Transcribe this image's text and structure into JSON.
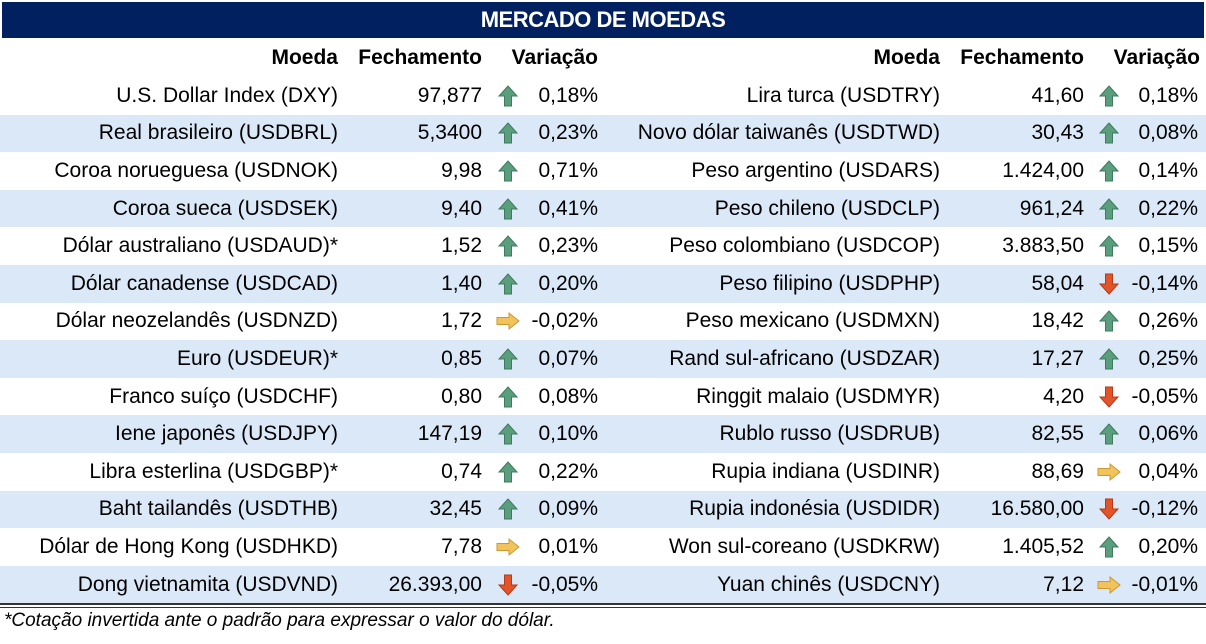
{
  "title": "MERCADO DE MOEDAS",
  "headers": {
    "currency": "Moeda",
    "close": "Fechamento",
    "change": "Variação"
  },
  "colors": {
    "title_bg": "#002060",
    "band": "#dbe8f7",
    "up": "#5a9e7e",
    "flat": "#f2c35a",
    "down": "#e2542a"
  },
  "left": [
    {
      "name": "U.S. Dollar Index (DXY)",
      "close": "97,877",
      "dir": "up",
      "change": "0,18%"
    },
    {
      "name": "Real brasileiro (USDBRL)",
      "close": "5,3400",
      "dir": "up",
      "change": "0,23%"
    },
    {
      "name": "Coroa norueguesa (USDNOK)",
      "close": "9,98",
      "dir": "up",
      "change": "0,71%"
    },
    {
      "name": "Coroa sueca (USDSEK)",
      "close": "9,40",
      "dir": "up",
      "change": "0,41%"
    },
    {
      "name": "Dólar australiano (USDAUD)*",
      "close": "1,52",
      "dir": "up",
      "change": "0,23%"
    },
    {
      "name": "Dólar canadense (USDCAD)",
      "close": "1,40",
      "dir": "up",
      "change": "0,20%"
    },
    {
      "name": "Dólar neozelandês (USDNZD)",
      "close": "1,72",
      "dir": "flat",
      "change": "-0,02%"
    },
    {
      "name": "Euro (USDEUR)*",
      "close": "0,85",
      "dir": "up",
      "change": "0,07%"
    },
    {
      "name": "Franco suíço (USDCHF)",
      "close": "0,80",
      "dir": "up",
      "change": "0,08%"
    },
    {
      "name": "Iene japonês (USDJPY)",
      "close": "147,19",
      "dir": "up",
      "change": "0,10%"
    },
    {
      "name": "Libra esterlina (USDGBP)*",
      "close": "0,74",
      "dir": "up",
      "change": "0,22%"
    },
    {
      "name": "Baht tailandês (USDTHB)",
      "close": "32,45",
      "dir": "up",
      "change": "0,09%"
    },
    {
      "name": "Dólar de Hong Kong (USDHKD)",
      "close": "7,78",
      "dir": "flat",
      "change": "0,01%"
    },
    {
      "name": "Dong vietnamita (USDVND)",
      "close": "26.393,00",
      "dir": "down",
      "change": "-0,05%"
    }
  ],
  "right": [
    {
      "name": "Lira turca (USDTRY)",
      "close": "41,60",
      "dir": "up",
      "change": "0,18%"
    },
    {
      "name": "Novo dólar taiwanês (USDTWD)",
      "close": "30,43",
      "dir": "up",
      "change": "0,08%"
    },
    {
      "name": "Peso argentino (USDARS)",
      "close": "1.424,00",
      "dir": "up",
      "change": "0,14%"
    },
    {
      "name": "Peso chileno (USDCLP)",
      "close": "961,24",
      "dir": "up",
      "change": "0,22%"
    },
    {
      "name": "Peso colombiano (USDCOP)",
      "close": "3.883,50",
      "dir": "up",
      "change": "0,15%"
    },
    {
      "name": "Peso filipino (USDPHP)",
      "close": "58,04",
      "dir": "down",
      "change": "-0,14%"
    },
    {
      "name": "Peso mexicano (USDMXN)",
      "close": "18,42",
      "dir": "up",
      "change": "0,26%"
    },
    {
      "name": "Rand sul-africano (USDZAR)",
      "close": "17,27",
      "dir": "up",
      "change": "0,25%"
    },
    {
      "name": "Ringgit malaio (USDMYR)",
      "close": "4,20",
      "dir": "down",
      "change": "-0,05%"
    },
    {
      "name": "Rublo russo (USDRUB)",
      "close": "82,55",
      "dir": "up",
      "change": "0,06%"
    },
    {
      "name": "Rupia indiana (USDINR)",
      "close": "88,69",
      "dir": "flat",
      "change": "0,04%"
    },
    {
      "name": "Rupia indonésia (USDIDR)",
      "close": "16.580,00",
      "dir": "down",
      "change": "-0,12%"
    },
    {
      "name": "Won sul-coreano (USDKRW)",
      "close": "1.405,52",
      "dir": "up",
      "change": "0,20%"
    },
    {
      "name": "Yuan chinês (USDCNY)",
      "close": "7,12",
      "dir": "flat",
      "change": "-0,01%"
    }
  ],
  "footnote": "*Cotação invertida ante o padrão para expressar o valor do dólar."
}
